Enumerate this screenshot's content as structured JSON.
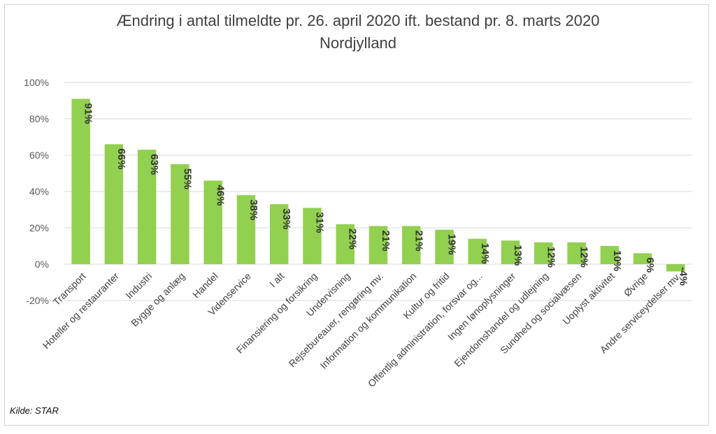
{
  "chart_data": {
    "type": "bar",
    "title": "Ændring i antal tilmeldte pr. 26. april 2020 ift. bestand pr. 8. marts 2020",
    "subtitle": "Nordjylland",
    "source": "Kilde: STAR",
    "categories": [
      "Transport",
      "Hoteller og restauranter",
      "Industri",
      "Bygge og anlæg",
      "Handel",
      "Videnservice",
      "I alt",
      "Finansiering og forsikring",
      "Undervisning",
      "Rejsebureauer, rengøring mv.",
      "Information og kommunikation",
      "Kultur og fritid",
      "Offentlig administration, forsvar og...",
      "Ingen lønoplysninger",
      "Ejendomshandel og udlejning",
      "Sundhed og socialvæsen",
      "Uoplyst aktivitet",
      "Øvrige",
      "Andre serviceydelser mv."
    ],
    "values": [
      91,
      66,
      63,
      55,
      46,
      38,
      33,
      31,
      22,
      21,
      21,
      19,
      14,
      13,
      12,
      12,
      10,
      6,
      -4
    ],
    "data_labels": [
      "91%",
      "66%",
      "63%",
      "55%",
      "46%",
      "38%",
      "33%",
      "31%",
      "22%",
      "21%",
      "21%",
      "19%",
      "14%",
      "13%",
      "12%",
      "12%",
      "10%",
      "6%",
      "-4%"
    ],
    "y_ticks": [
      "100%",
      "80%",
      "60%",
      "40%",
      "20%",
      "0%",
      "-20%"
    ],
    "ylim": [
      -20,
      100
    ],
    "grid": true,
    "legend": "none",
    "bar_color": "#92d050",
    "gridline_color": "#d9d9d9"
  }
}
